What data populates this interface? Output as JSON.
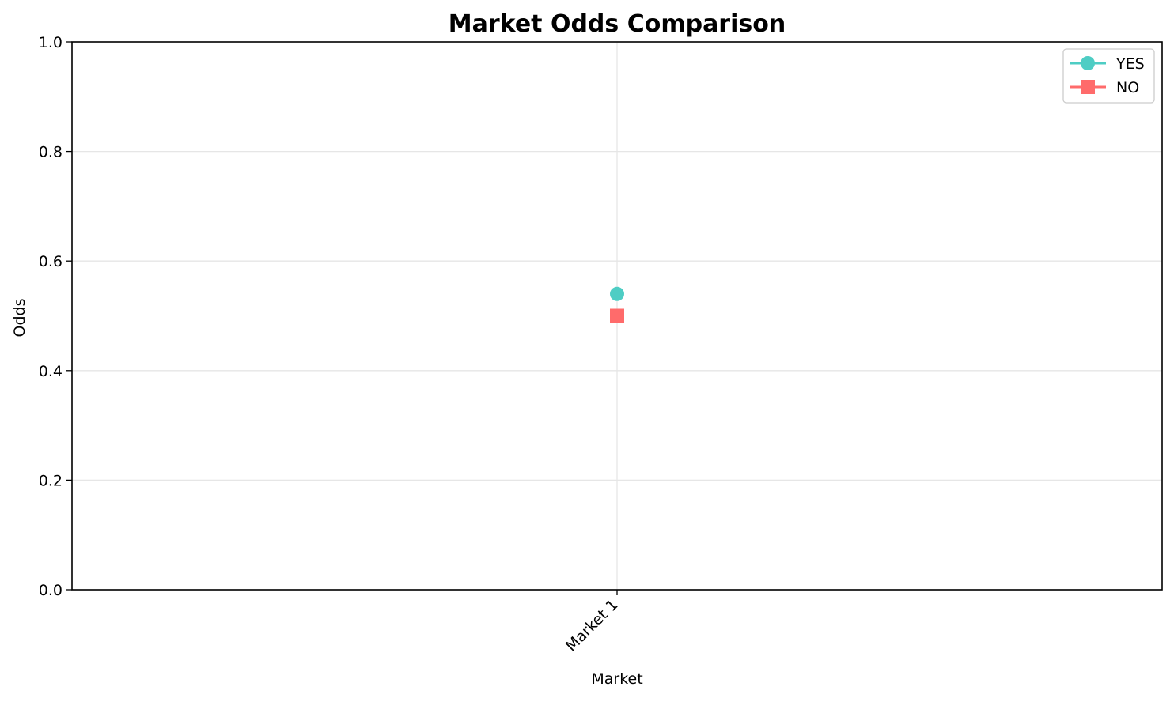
{
  "chart_data": {
    "type": "scatter",
    "title": "Market Odds Comparison",
    "xlabel": "Market",
    "ylabel": "Odds",
    "categories": [
      "Market 1"
    ],
    "ylim": [
      0,
      1
    ],
    "yticks": [
      0,
      0.2,
      0.4,
      0.6,
      0.8,
      1
    ],
    "ytick_labels": [
      "0.0",
      "0.2",
      "0.4",
      "0.6",
      "0.8",
      "1.0"
    ],
    "grid": true,
    "legend_position": "top-right",
    "series": [
      {
        "name": "YES",
        "values": [
          0.54
        ],
        "color": "#4ECDC4",
        "marker": "circle"
      },
      {
        "name": "NO",
        "values": [
          0.5
        ],
        "color": "#FF6B6B",
        "marker": "square"
      }
    ]
  }
}
